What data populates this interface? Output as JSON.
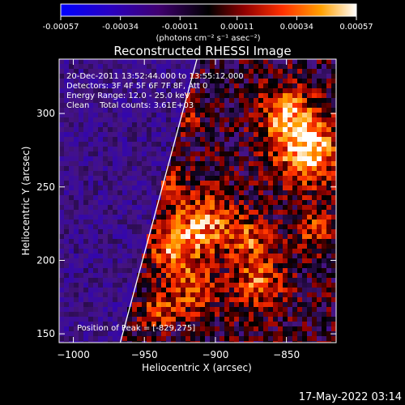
{
  "footer_timestamp": "17-May-2022 03:14",
  "colorbar": {
    "tick_labels": [
      "-0.00057",
      "-0.00034",
      "-0.00011",
      "0.00011",
      "0.00034",
      "0.00057"
    ],
    "unit_label": "(photons cm⁻² s⁻¹ asec⁻²)"
  },
  "chart_data": {
    "type": "heatmap",
    "title": "Reconstructed RHESSI Image",
    "xlabel": "Heliocentric X (arcsec)",
    "ylabel": "Heliocentric Y (arcsec)",
    "xlim": [
      -1010,
      -815
    ],
    "ylim": [
      144,
      337
    ],
    "x_ticks": [
      -1000,
      -950,
      -900,
      -850
    ],
    "y_ticks": [
      150,
      200,
      250,
      300
    ],
    "x_tick_labels": [
      "−1000",
      "−950",
      "−900",
      "−850"
    ],
    "y_tick_labels": [
      "150",
      "200",
      "250",
      "300"
    ],
    "value_range": [
      -0.00057,
      0.00057
    ],
    "colormap": [
      "#0000ff",
      "#4b0080",
      "#000000",
      "#8b0000",
      "#ff4500",
      "#ffd700",
      "#ffffff"
    ],
    "limb_line": {
      "x": [
        -967,
        -913
      ],
      "y": [
        144,
        337
      ]
    },
    "peak": {
      "x": -829,
      "y": 275
    },
    "info_lines": [
      "20-Dec-2011 13:52:44.000 to 13:55:12.000",
      "Detectors: 3F 4F 5F 6F 7F 8F, Att 0",
      "Energy Range: 12.0 - 25.0 keV",
      "Clean    Total counts: 3.61E+03"
    ],
    "peak_label": "Position of Peak = [-829,275]"
  }
}
